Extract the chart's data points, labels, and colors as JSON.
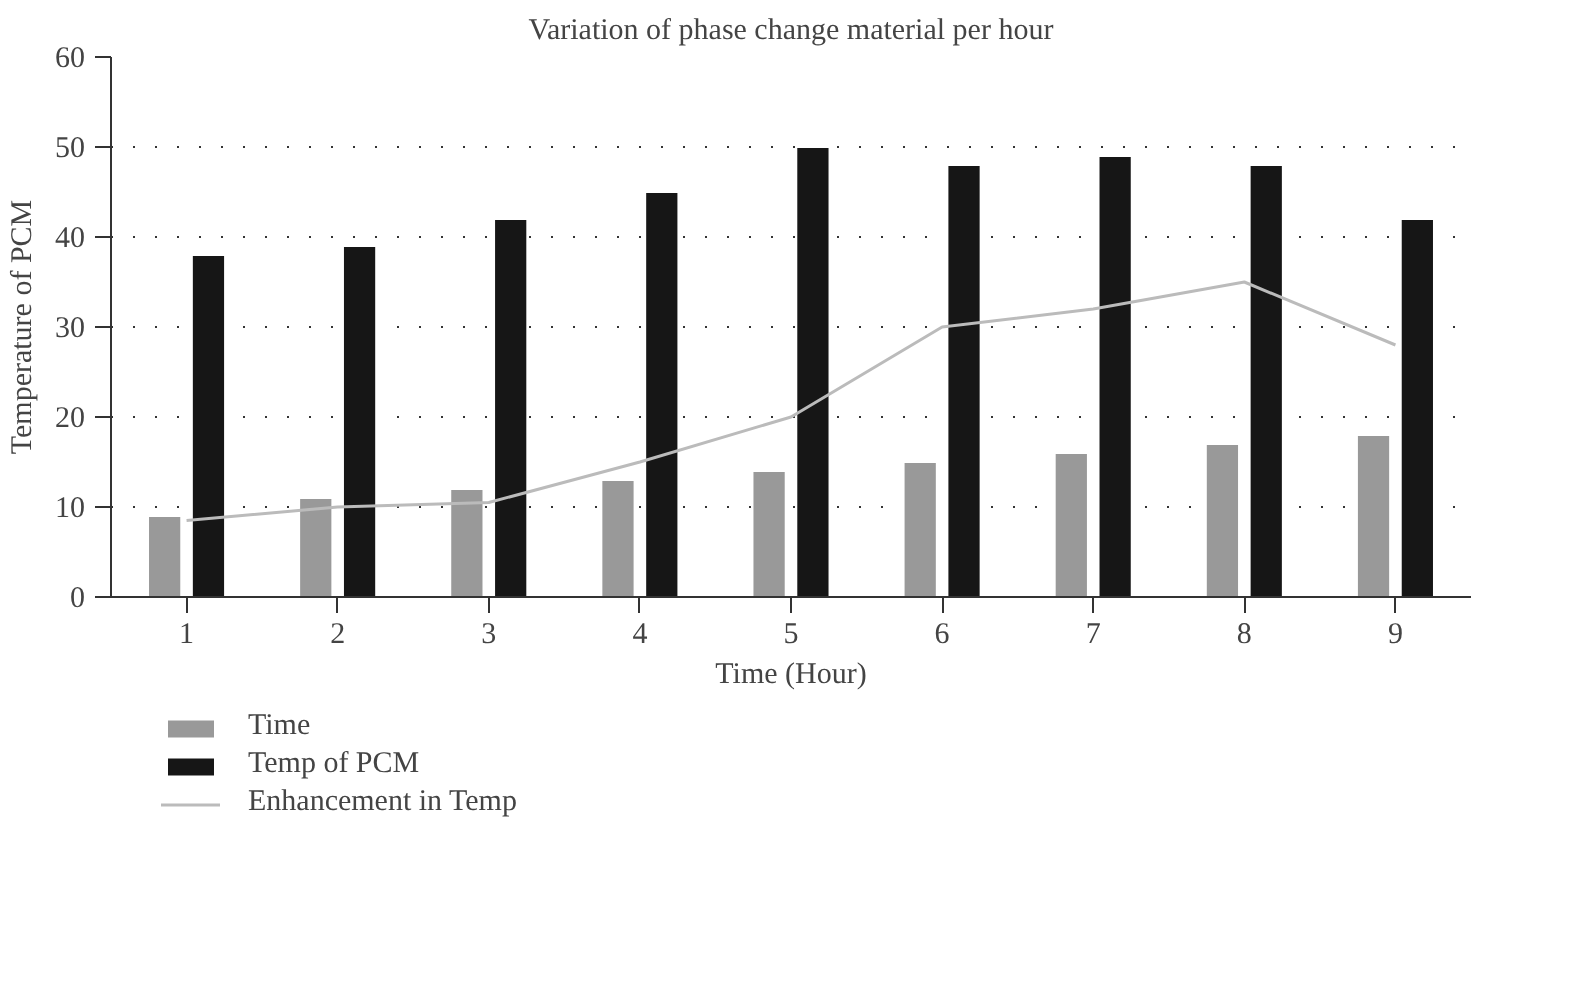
{
  "chart_data": {
    "type": "bar",
    "title": "Variation of phase change material per hour",
    "xlabel": "Time (Hour)",
    "ylabel": "Temperature of PCM",
    "categories": [
      "1",
      "2",
      "3",
      "4",
      "5",
      "6",
      "7",
      "8",
      "9"
    ],
    "series": [
      {
        "name": "Time",
        "color": "#999999",
        "values": [
          9,
          11,
          12,
          13,
          14,
          15,
          16,
          17,
          18
        ]
      },
      {
        "name": "Temp of PCM",
        "color": "#161616",
        "values": [
          38,
          39,
          42,
          45,
          50,
          48,
          49,
          48,
          42
        ]
      },
      {
        "name": "Enhancement in Temp",
        "type": "line",
        "color": "#bbbbbb",
        "values": [
          8.5,
          10,
          10.5,
          15,
          20,
          30,
          32,
          35,
          28
        ]
      }
    ],
    "ylim": [
      0,
      60
    ],
    "yticks": [
      0,
      10,
      20,
      30,
      40,
      50,
      60
    ],
    "grid": "y",
    "legend": "bottom left"
  }
}
